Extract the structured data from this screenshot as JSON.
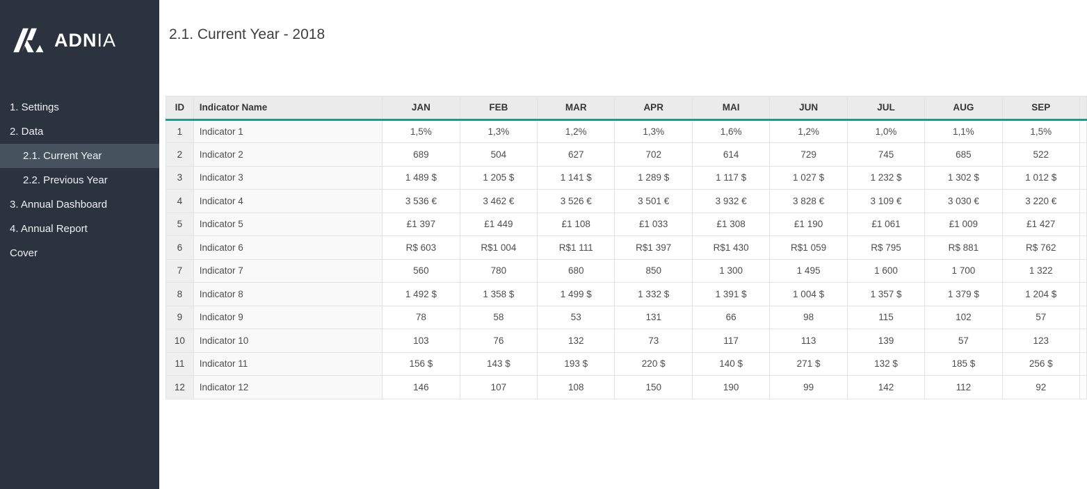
{
  "sidebar": {
    "logo_bold": "ADN",
    "logo_light": "IA",
    "items": [
      {
        "key": "settings",
        "label": "1. Settings",
        "indent": false,
        "active": false
      },
      {
        "key": "data",
        "label": "2. Data",
        "indent": false,
        "active": false
      },
      {
        "key": "current-year",
        "label": "2.1. Current Year",
        "indent": true,
        "active": true
      },
      {
        "key": "previous-year",
        "label": "2.2. Previous Year",
        "indent": true,
        "active": false
      },
      {
        "key": "annual-dashboard",
        "label": "3. Annual Dashboard",
        "indent": false,
        "active": false
      },
      {
        "key": "annual-report",
        "label": "4. Annual Report",
        "indent": false,
        "active": false
      },
      {
        "key": "cover",
        "label": "Cover",
        "indent": false,
        "active": false
      }
    ]
  },
  "header": {
    "title": "2.1. Current Year - 2018"
  },
  "table": {
    "columns": [
      "ID",
      "Indicator Name",
      "JAN",
      "FEB",
      "MAR",
      "APR",
      "MAI",
      "JUN",
      "JUL",
      "AUG",
      "SEP"
    ],
    "rows": [
      {
        "id": "1",
        "name": "Indicator 1",
        "values": [
          "1,5%",
          "1,3%",
          "1,2%",
          "1,3%",
          "1,6%",
          "1,2%",
          "1,0%",
          "1,1%",
          "1,5%"
        ]
      },
      {
        "id": "2",
        "name": "Indicator 2",
        "values": [
          "689",
          "504",
          "627",
          "702",
          "614",
          "729",
          "745",
          "685",
          "522"
        ]
      },
      {
        "id": "3",
        "name": "Indicator 3",
        "values": [
          "1 489 $",
          "1 205 $",
          "1 141 $",
          "1 289 $",
          "1 117 $",
          "1 027 $",
          "1 232 $",
          "1 302 $",
          "1 012 $"
        ]
      },
      {
        "id": "4",
        "name": "Indicator 4",
        "values": [
          "3 536 €",
          "3 462 €",
          "3 526 €",
          "3 501 €",
          "3 932 €",
          "3 828 €",
          "3 109 €",
          "3 030 €",
          "3 220 €"
        ]
      },
      {
        "id": "5",
        "name": "Indicator 5",
        "values": [
          "£1 397",
          "£1 449",
          "£1 108",
          "£1 033",
          "£1 308",
          "£1 190",
          "£1 061",
          "£1 009",
          "£1 427"
        ]
      },
      {
        "id": "6",
        "name": "Indicator 6",
        "values": [
          "R$ 603",
          "R$1 004",
          "R$1 111",
          "R$1 397",
          "R$1 430",
          "R$1 059",
          "R$ 795",
          "R$ 881",
          "R$ 762"
        ]
      },
      {
        "id": "7",
        "name": "Indicator 7",
        "values": [
          "560",
          "780",
          "680",
          "850",
          "1 300",
          "1 495",
          "1 600",
          "1 700",
          "1 322"
        ]
      },
      {
        "id": "8",
        "name": "Indicator 8",
        "values": [
          "1 492 $",
          "1 358 $",
          "1 499 $",
          "1 332 $",
          "1 391 $",
          "1 004 $",
          "1 357 $",
          "1 379 $",
          "1 204 $"
        ]
      },
      {
        "id": "9",
        "name": "Indicator 9",
        "values": [
          "78",
          "58",
          "53",
          "131",
          "66",
          "98",
          "115",
          "102",
          "57"
        ]
      },
      {
        "id": "10",
        "name": "Indicator 10",
        "values": [
          "103",
          "76",
          "132",
          "73",
          "117",
          "113",
          "139",
          "57",
          "123"
        ]
      },
      {
        "id": "11",
        "name": "Indicator 11",
        "values": [
          "156 $",
          "143 $",
          "193 $",
          "220 $",
          "140 $",
          "271 $",
          "132 $",
          "185 $",
          "256 $"
        ]
      },
      {
        "id": "12",
        "name": "Indicator 12",
        "values": [
          "146",
          "107",
          "108",
          "150",
          "190",
          "99",
          "142",
          "112",
          "92"
        ]
      }
    ]
  },
  "colors": {
    "sidebar_bg": "#2b333e",
    "sidebar_active_bg": "#47525f",
    "accent_teal": "#00a69c",
    "header_bg": "#ebebeb",
    "cell_border": "#e2e2e2"
  }
}
